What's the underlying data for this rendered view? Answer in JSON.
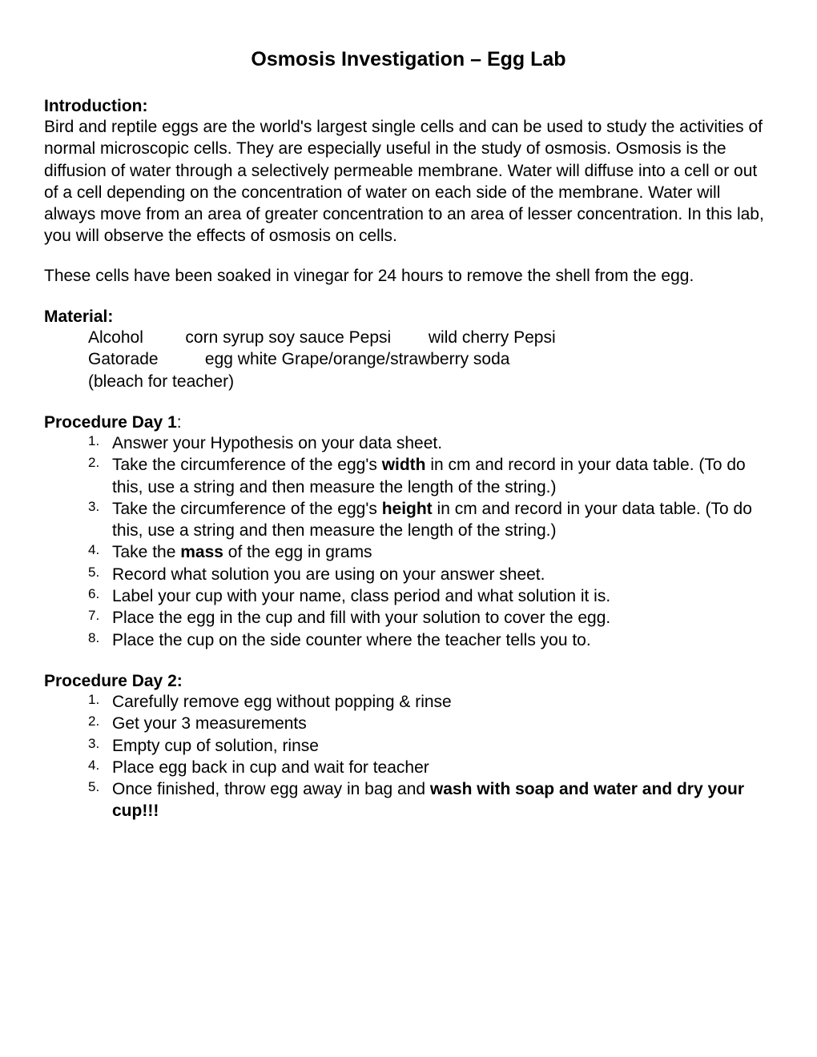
{
  "title": "Osmosis Investigation – Egg Lab",
  "intro": {
    "heading": "Introduction:",
    "p1": "Bird and reptile eggs are the world's largest single cells and can be used to study the activities of normal microscopic cells. They are especially useful in the study of osmosis. Osmosis is the diffusion of water through a selectively permeable membrane. Water will diffuse into a cell or out of a cell depending on the concentration of water on each side of the membrane. Water will always move from an area of greater concentration to an area of lesser concentration. In this lab, you will observe the effects of osmosis on cells.",
    "p2": "These cells have been soaked in vinegar for 24 hours to remove the shell from the egg."
  },
  "materials": {
    "heading": "Material:",
    "line1_part1": "Alcohol",
    "line1_part2": "corn syrup  soy sauce Pepsi",
    "line1_part3": "wild cherry Pepsi",
    "line2_part1": "Gatorade",
    "line2_part2": "egg white Grape/orange/strawberry soda",
    "line3": "(bleach for teacher)"
  },
  "procedure1": {
    "heading": "Procedure Day 1",
    "items": {
      "i1": "Answer your Hypothesis on your data sheet.",
      "i2_pre": "Take the circumference of the egg's ",
      "i2_bold": "width",
      "i2_post": " in cm and record in your data table. (To do this, use a string and then measure the length of the string.)",
      "i3_pre": "Take the circumference of the egg's ",
      "i3_bold": "height",
      "i3_post": " in cm and record in your data table. (To do this, use a string and then measure the length of the string.)",
      "i4_pre": "Take the ",
      "i4_bold": "mass",
      "i4_post": " of the egg in grams",
      "i5": "Record what solution you are using on your answer sheet.",
      "i6": "Label your cup with your name, class period and what solution it is.",
      "i7": "Place the egg in the cup and fill with your solution to cover the egg.",
      "i8": "Place the cup on the side counter where the teacher tells you to."
    }
  },
  "procedure2": {
    "heading": "Procedure Day 2:",
    "items": {
      "i1": "Carefully remove egg without popping & rinse",
      "i2": "Get your 3 measurements",
      "i3": " Empty cup of solution, rinse",
      "i4": "Place egg back in cup and wait for teacher",
      "i5_pre": "Once finished, throw egg away in bag and ",
      "i5_bold": "wash with soap and water and dry your cup!!!"
    }
  }
}
